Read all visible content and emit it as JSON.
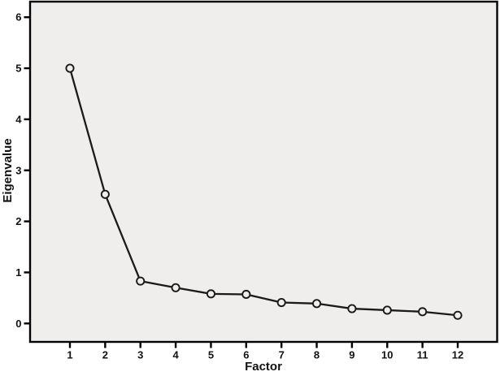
{
  "figure": {
    "kind": "scree-plot",
    "page_bg": "#ffffff"
  },
  "chart_data": {
    "type": "line",
    "title": "",
    "xlabel": "Factor",
    "ylabel": "Eigenvalue",
    "x": [
      1,
      2,
      3,
      4,
      5,
      6,
      7,
      8,
      9,
      10,
      11,
      12
    ],
    "series": [
      {
        "name": "Eigenvalue",
        "values": [
          5.0,
          2.53,
          0.83,
          0.7,
          0.58,
          0.57,
          0.41,
          0.39,
          0.29,
          0.26,
          0.23,
          0.16
        ]
      }
    ],
    "xticks": [
      "1",
      "2",
      "3",
      "4",
      "5",
      "6",
      "7",
      "8",
      "9",
      "10",
      "11",
      "12"
    ],
    "yticks": [
      "0",
      "1",
      "2",
      "3",
      "4",
      "5",
      "6"
    ],
    "ytick_values": [
      0,
      1,
      2,
      3,
      4,
      5,
      6
    ],
    "xlim": [
      1,
      12
    ],
    "ylim": [
      0,
      6
    ],
    "grid": false,
    "legend": "none",
    "marker": "open-circle",
    "colors": {
      "line": "#1a1a1a",
      "marker_stroke": "#1a1a1a",
      "marker_fill": "#efeeed",
      "plot_bg": "#efeeed",
      "frame": "#000000",
      "text": "#121212"
    }
  }
}
